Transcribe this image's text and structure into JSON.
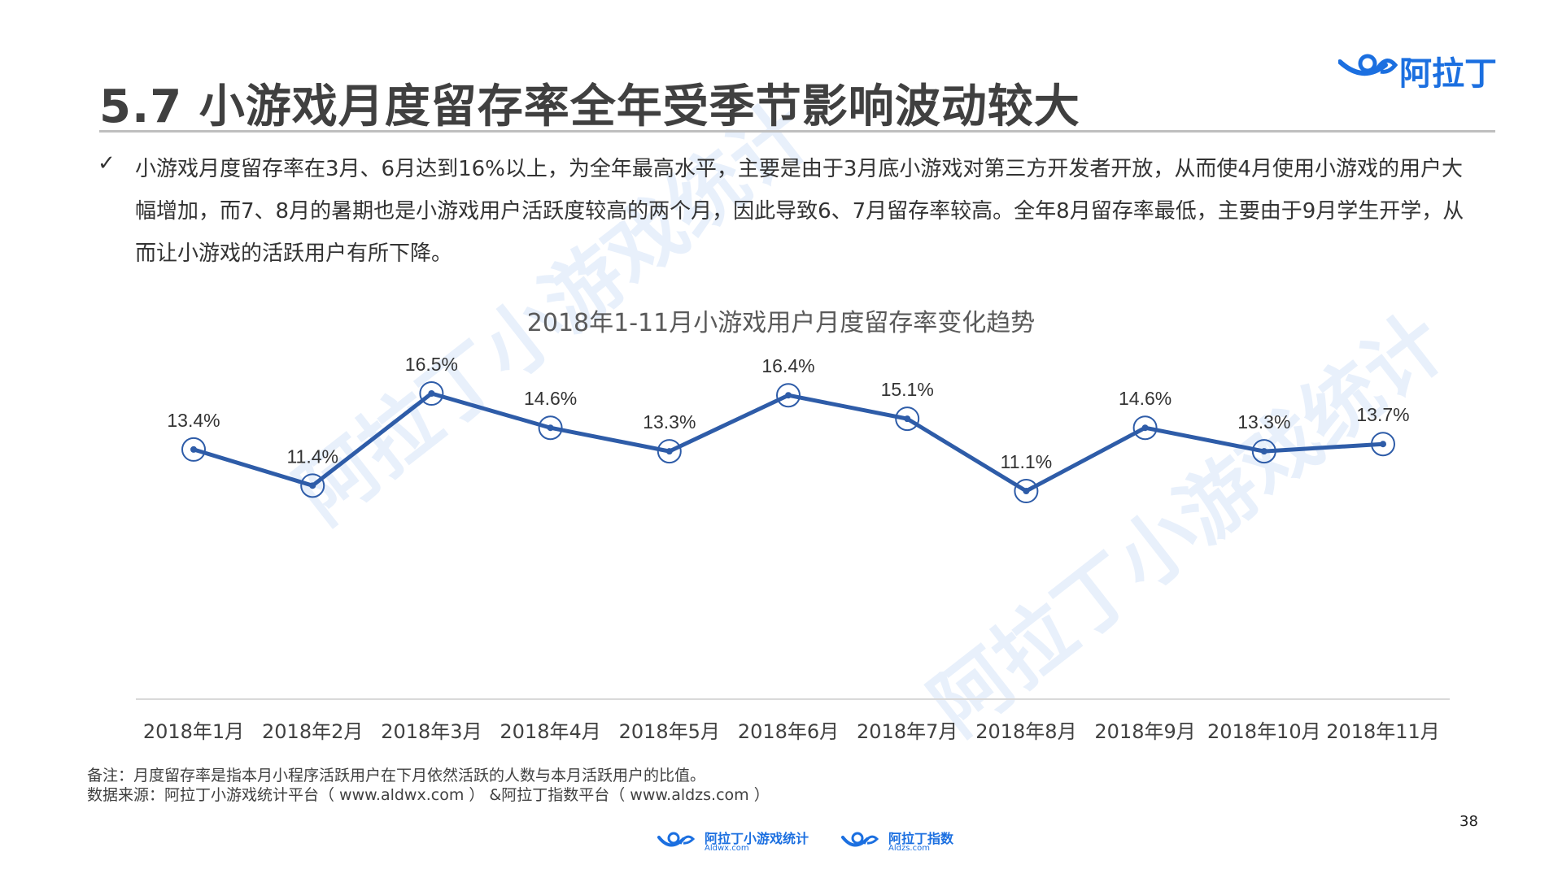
{
  "page": {
    "title": "5.7 小游戏月度留存率全年受季节影响波动较大",
    "brand": "阿拉丁",
    "bullet": "小游戏月度留存率在3月、6月达到16%以上，为全年最高水平，主要是由于3月底小游戏对第三方开发者开放，从而使4月使用小游戏的用户大幅增加，而7、8月的暑期也是小游戏用户活跃度较高的两个月，因此导致6、7月留存率较高。全年8月留存率最低，主要由于9月学生开学，从而让小游戏的活跃用户有所下降。",
    "check_icon": "✓",
    "footnote_1": "备注：月度留存率是指本月小程序活跃用户在下月依然活跃的人数与本月活跃用户的比值。",
    "footnote_2": "数据来源：阿拉丁小游戏统计平台（ www.aldwx.com ） &阿拉丁指数平台（ www.aldzs.com ）",
    "page_number": "38",
    "footer_logo_1": {
      "name": "阿拉丁小游戏统计",
      "sub": "Aldwx.com"
    },
    "footer_logo_2": {
      "name": "阿拉丁指数",
      "sub": "Aldzs.com"
    },
    "watermark": "阿拉丁小游戏统计",
    "colors": {
      "accent": "#2e5ca8",
      "brand": "#1b6fe0",
      "axis": "#d9d9d9"
    }
  },
  "chart_data": {
    "type": "line",
    "title": "2018年1-11月小游戏用户月度留存率变化趋势",
    "categories": [
      "2018年1月",
      "2018年2月",
      "2018年3月",
      "2018年4月",
      "2018年5月",
      "2018年6月",
      "2018年7月",
      "2018年8月",
      "2018年9月",
      "2018年10月",
      "2018年11月"
    ],
    "series": [
      {
        "values": [
          13.4,
          11.4,
          16.5,
          14.6,
          13.3,
          16.4,
          15.1,
          11.1,
          14.6,
          13.3,
          13.7
        ]
      }
    ],
    "data_labels": [
      "13.4%",
      "11.4%",
      "16.5%",
      "14.6%",
      "13.3%",
      "16.4%",
      "15.1%",
      "11.1%",
      "14.6%",
      "13.3%",
      "13.7%"
    ],
    "ylim": [
      0,
      20
    ],
    "grid": false,
    "xlabel": "",
    "ylabel": ""
  }
}
